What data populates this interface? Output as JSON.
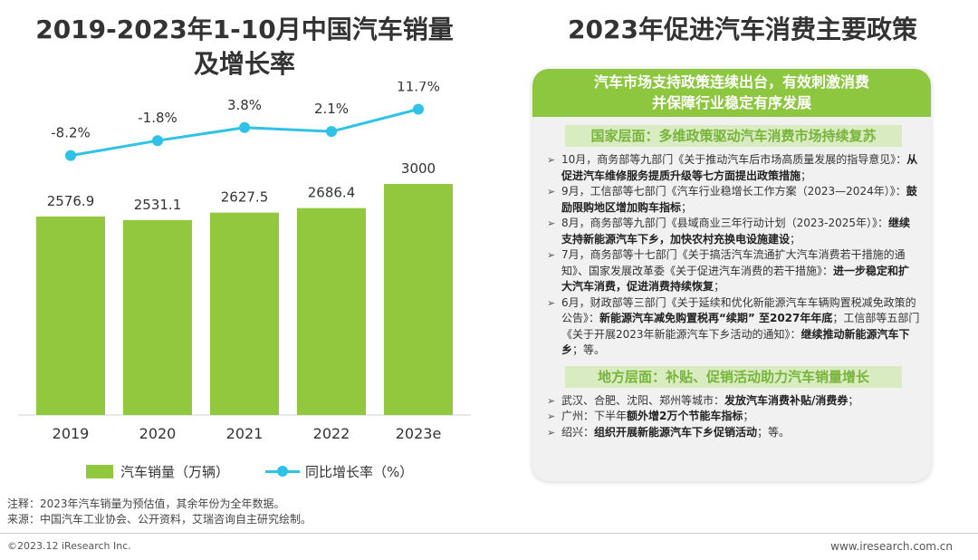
{
  "left_title_line1": "2019-2023年1-10月中国汽车销量",
  "left_title_line2": "及增长率",
  "right_title": "2023年促进汽车消费主要政策",
  "chart_data": {
    "type": "bar",
    "title": "2019-2023年1-10月中国汽车销量及增长率",
    "categories": [
      "2019",
      "2020",
      "2021",
      "2022",
      "2023e"
    ],
    "series": [
      {
        "name": "汽车销量（万辆）",
        "type": "bar",
        "color": "#92c83e",
        "values": [
          2576.9,
          2531.1,
          2627.5,
          2686.4,
          3000
        ],
        "labels": [
          "2576.9",
          "2531.1",
          "2627.5",
          "2686.4",
          "3000"
        ]
      },
      {
        "name": "同比增长率（%）",
        "type": "line",
        "color": "#2fc2e6",
        "values": [
          -8.2,
          -1.8,
          3.8,
          2.1,
          11.7
        ],
        "labels": [
          "-8.2%",
          "-1.8%",
          "3.8%",
          "2.1%",
          "11.7%"
        ]
      }
    ],
    "bar_range": [
      0,
      4200
    ],
    "line_range": [
      -20,
      15
    ],
    "legend_position": "bottom"
  },
  "legend": {
    "bar_label": "汽车销量（万辆）",
    "line_label": "同比增长率（%）"
  },
  "footnotes": {
    "note": "注释：2023年汽车销量为预估值，其余年份为全年数据。",
    "source": "来源：中国汽车工业协会、公开资料，艾瑞咨询自主研究绘制。"
  },
  "copyright": "©2023.12 iResearch Inc.",
  "website": "www.iresearch.com.cn",
  "panel": {
    "header_line1": "汽车市场支持政策连续出台，有效刺激消费",
    "header_line2": "并保障行业稳定有序发展",
    "national": {
      "title": "国家层面：多维政策驱动汽车消费市场持续复苏",
      "items": [
        {
          "plain": "10月，商务部等九部门《关于推动汽车后市场高质量发展的指导意见》：",
          "bold": "从促进汽车维修服务提质升级等七方面提出政策措施",
          "tail": "；"
        },
        {
          "plain": "9月，工信部等七部门《汽车行业稳增长工作方案（2023—2024年）》：",
          "bold": "鼓励限购地区增加购车指标",
          "tail": "；"
        },
        {
          "plain": "8月，商务部等九部门《县域商业三年行动计划（2023-2025年）》：",
          "bold": "继续支持新能源汽车下乡，加快农村充换电设施建设",
          "tail": "；"
        },
        {
          "plain": "7月，商务部等十七部门《关于搞活汽车流通扩大汽车消费若干措施的通知》、国家发展改革委《关于促进汽车消费的若干措施》：",
          "bold": "进一步稳定和扩大汽车消费，促进消费持续恢复",
          "tail": "；"
        },
        {
          "plain": "6月，财政部等三部门《关于延续和优化新能源汽车车辆购置税减免政策的公告》：",
          "bold": "新能源汽车减免购置税再“续期” 至2027年年底",
          "tail": "；工信部等五部门《关于开展2023年新能源汽车下乡活动的通知》：",
          "bold2": "继续推动新能源汽车下乡",
          "tail2": "；等。"
        }
      ]
    },
    "local": {
      "title": "地方层面：补贴、促销活动助力汽车销量增长",
      "items": [
        {
          "plain": "武汉、合肥、沈阳、郑州等城市：",
          "bold": "发放汽车消费补贴/消费券",
          "tail": "；"
        },
        {
          "plain": "广州：下半年",
          "bold": "额外增2万个节能车指标",
          "tail": "；"
        },
        {
          "plain": "绍兴：",
          "bold": "组织开展新能源汽车下乡促销活动",
          "tail": "；等。"
        }
      ]
    }
  }
}
